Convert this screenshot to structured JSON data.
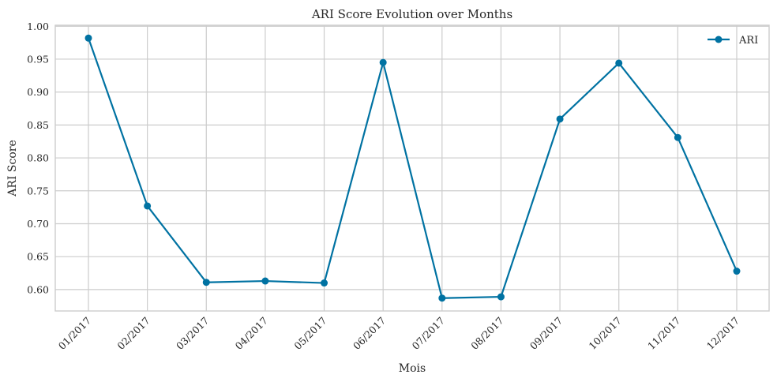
{
  "chart_data": {
    "type": "line",
    "title": "ARI Score Evolution over Months",
    "xlabel": "Mois",
    "ylabel": "ARI Score",
    "categories": [
      "01/2017",
      "02/2017",
      "03/2017",
      "04/2017",
      "05/2017",
      "06/2017",
      "07/2017",
      "08/2017",
      "09/2017",
      "10/2017",
      "11/2017",
      "12/2017"
    ],
    "series": [
      {
        "name": "ARI",
        "values": [
          0.982,
          0.727,
          0.611,
          0.613,
          0.61,
          0.945,
          0.587,
          0.589,
          0.859,
          0.944,
          0.831,
          0.628
        ]
      }
    ],
    "yticks": [
      "0.60",
      "0.65",
      "0.70",
      "0.75",
      "0.80",
      "0.85",
      "0.90",
      "0.95",
      "1.00"
    ],
    "ylim": [
      0.5675,
      1.0015
    ],
    "grid": true,
    "legend": "top-right",
    "marker": "circle",
    "color": "#0072a2"
  }
}
